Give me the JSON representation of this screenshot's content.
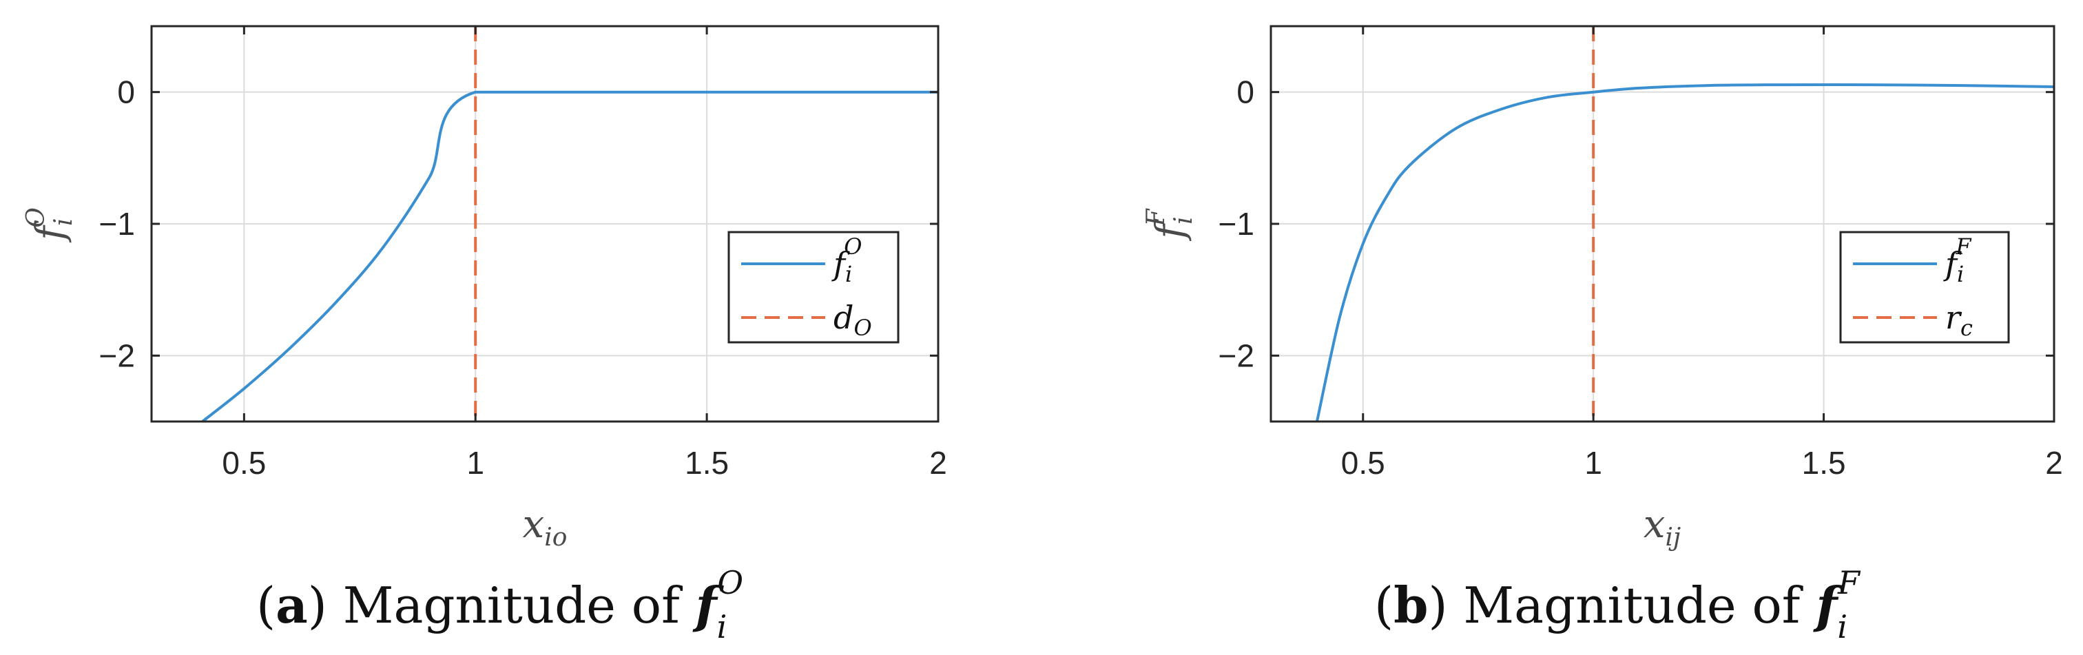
{
  "chart_data": [
    {
      "type": "line",
      "panel": "a",
      "caption": {
        "letter": "a",
        "text": "Magnitude of",
        "symbol": "f",
        "sub": "i",
        "sup": "O"
      },
      "xlabel": {
        "base": "x",
        "sub": "io"
      },
      "ylabel": {
        "base": "f",
        "sub": "i",
        "sup": "O"
      },
      "xlim": [
        0.3,
        2.0
      ],
      "ylim": [
        -2.5,
        0.5
      ],
      "xticks": [
        0.5,
        1,
        1.5,
        2
      ],
      "xtick_labels": [
        "0.5",
        "1",
        "1.5",
        "2"
      ],
      "yticks": [
        0,
        -1,
        -2
      ],
      "ytick_labels": [
        "0",
        "−1",
        "−2"
      ],
      "grid": true,
      "legend": {
        "position": "right",
        "entries": [
          {
            "base": "f",
            "sub": "i",
            "sup": "O",
            "style": "solid"
          },
          {
            "base": "d",
            "sub": "O",
            "sup": "",
            "style": "dashed"
          }
        ]
      },
      "series": [
        {
          "style": "solid",
          "color": "#3a8fd0",
          "points": [
            [
              0.41,
              -2.5
            ],
            [
              0.5,
              -2.25
            ],
            [
              0.6,
              -1.94
            ],
            [
              0.7,
              -1.59
            ],
            [
              0.8,
              -1.18
            ],
            [
              0.9,
              -0.65
            ],
            [
              1.0,
              0.0
            ],
            [
              1.5,
              0.0
            ],
            [
              2.0,
              0.0
            ]
          ]
        },
        {
          "style": "dashed",
          "color": "#e36d45",
          "vline": 1.0
        }
      ]
    },
    {
      "type": "line",
      "panel": "b",
      "caption": {
        "letter": "b",
        "text": "Magnitude of",
        "symbol": "f",
        "sub": "i",
        "sup": "F"
      },
      "xlabel": {
        "base": "x",
        "sub": "ij"
      },
      "ylabel": {
        "base": "f",
        "sub": "i",
        "sup": "F"
      },
      "xlim": [
        0.3,
        2.0
      ],
      "ylim": [
        -2.5,
        0.5
      ],
      "xticks": [
        0.5,
        1,
        1.5,
        2
      ],
      "xtick_labels": [
        "0.5",
        "1",
        "1.5",
        "2"
      ],
      "yticks": [
        0,
        -1,
        -2
      ],
      "ytick_labels": [
        "0",
        "−1",
        "−2"
      ],
      "grid": true,
      "legend": {
        "position": "right",
        "entries": [
          {
            "base": "f",
            "sub": "i",
            "sup": "F",
            "style": "solid"
          },
          {
            "base": "r",
            "sub": "c",
            "sup": "",
            "style": "dashed"
          }
        ]
      },
      "series": [
        {
          "style": "solid",
          "color": "#3a8fd0",
          "points": [
            [
              0.4,
              -2.5
            ],
            [
              0.45,
              -1.7
            ],
            [
              0.5,
              -1.15
            ],
            [
              0.55,
              -0.8
            ],
            [
              0.6,
              -0.56
            ],
            [
              0.7,
              -0.28
            ],
            [
              0.8,
              -0.13
            ],
            [
              0.9,
              -0.04
            ],
            [
              1.0,
              0.0
            ],
            [
              1.1,
              0.03
            ],
            [
              1.25,
              0.05
            ],
            [
              1.4,
              0.055
            ],
            [
              1.6,
              0.055
            ],
            [
              1.8,
              0.05
            ],
            [
              2.0,
              0.04
            ]
          ]
        },
        {
          "style": "dashed",
          "color": "#e36d45",
          "vline": 1.0
        }
      ]
    }
  ]
}
